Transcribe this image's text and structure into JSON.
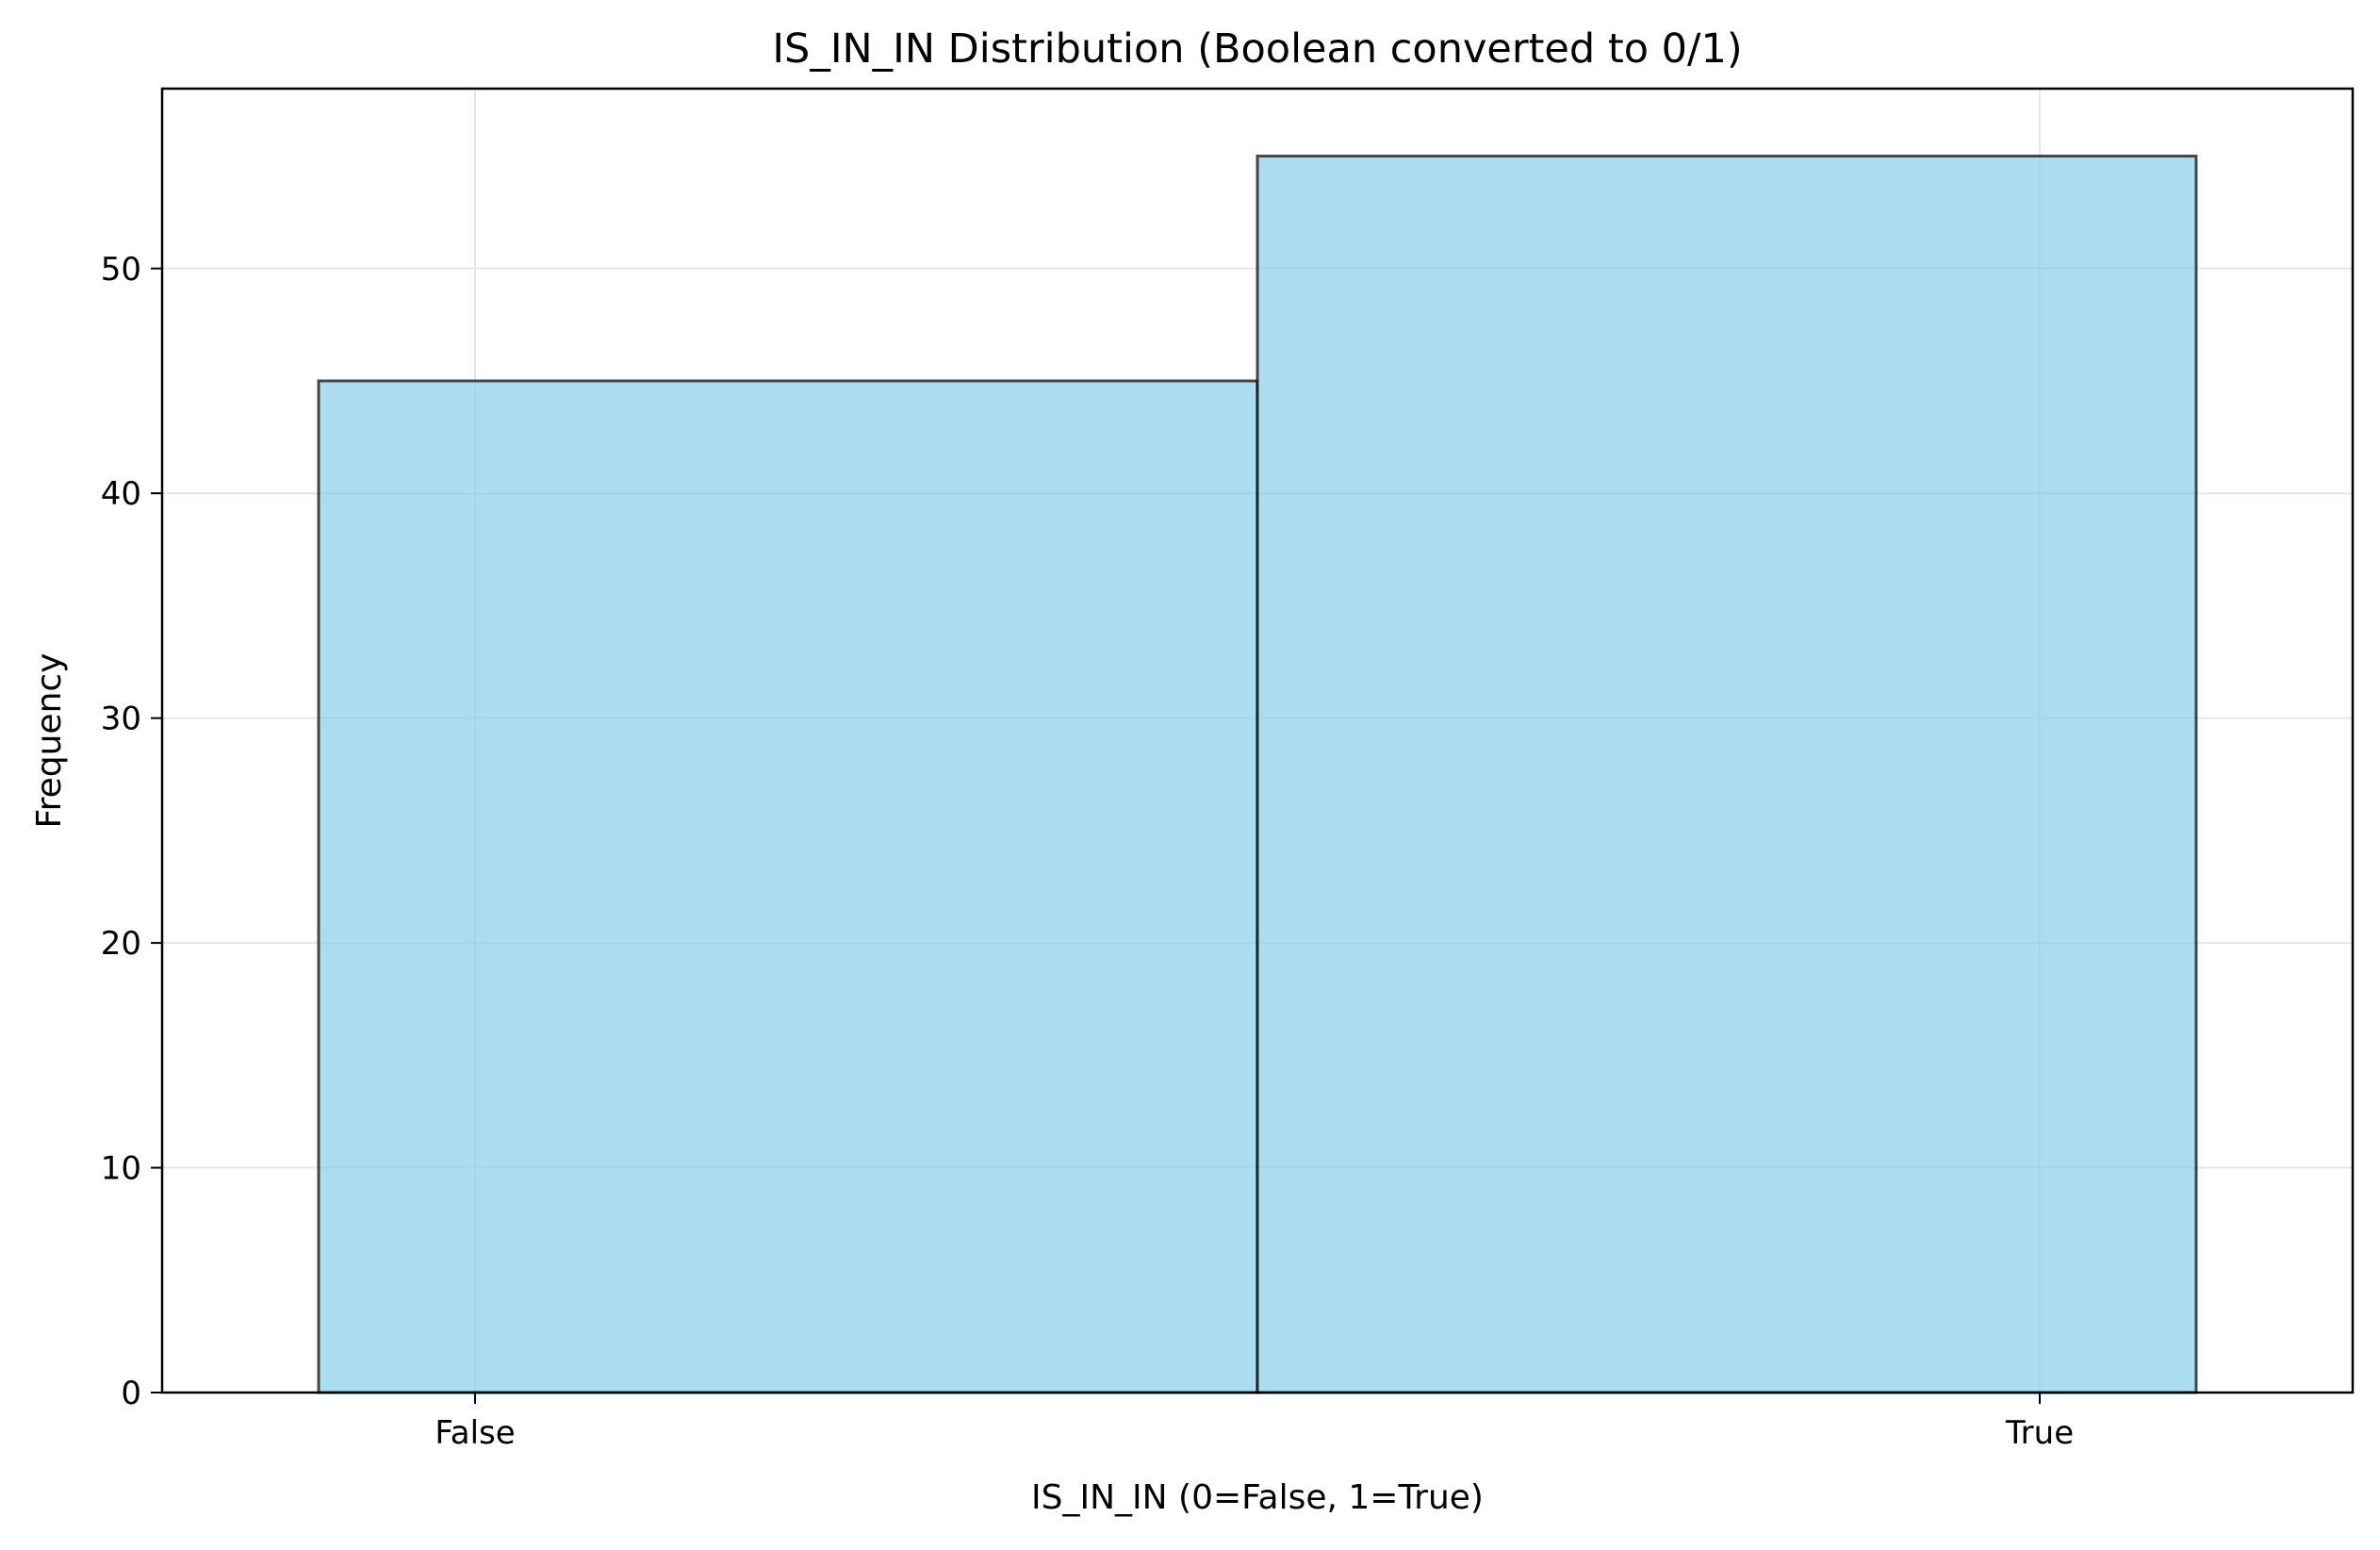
{
  "chart_data": {
    "type": "bar",
    "title": "IS_IN_IN Distribution (Boolean converted to 0/1)",
    "xlabel": "IS_IN_IN (0=False, 1=True)",
    "ylabel": "Frequency",
    "categories": [
      "False",
      "True"
    ],
    "values": [
      45,
      55
    ],
    "ylim": [
      0,
      58
    ],
    "yticks": [
      0,
      10,
      20,
      30,
      40,
      50
    ],
    "grid": true,
    "legend": "none",
    "colors": {
      "bar_fill": "#87CEEB",
      "bar_edge": "#000000",
      "grid": "#e6e6e6",
      "axes": "#000000"
    }
  }
}
